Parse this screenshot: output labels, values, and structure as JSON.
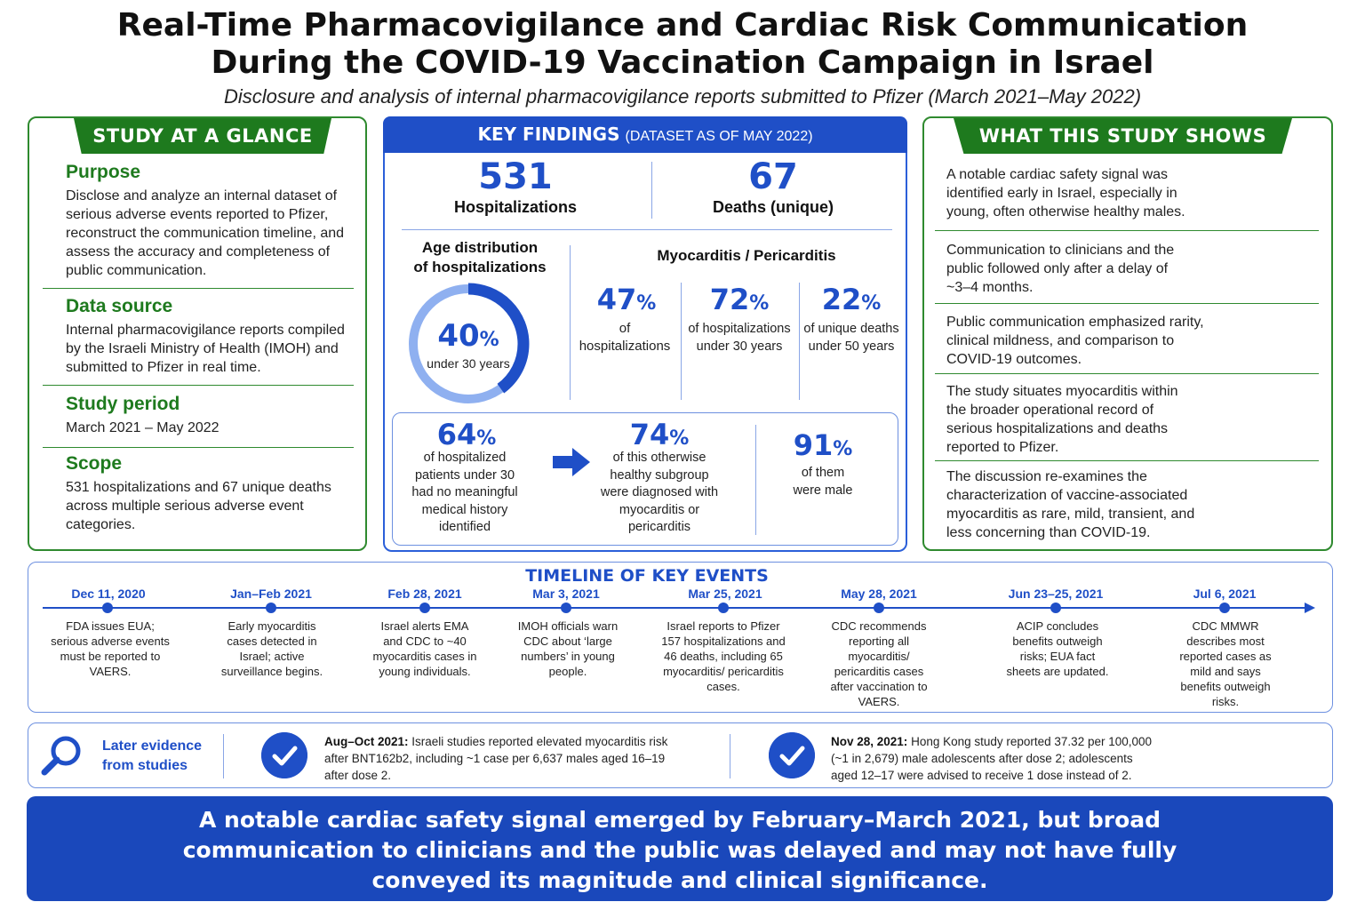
{
  "header": {
    "title_line1": "Real-Time Pharmacovigilance and Cardiac Risk Communication",
    "title_line2": "During the COVID-19 Vaccination Campaign in Israel",
    "subtitle": "Disclosure and analysis of internal pharmacovigilance reports submitted to Pfizer (March 2021–May 2022)"
  },
  "glance": {
    "tab": "STUDY AT A GLANCE",
    "sections": [
      {
        "heading": "Purpose",
        "text": "Disclose and analyze an internal dataset of serious adverse events reported to Pfizer, reconstruct the communication timeline, and assess the accuracy and completeness of public communication."
      },
      {
        "heading": "Data source",
        "text": "Internal pharmacovigilance reports compiled by the Israeli Ministry of Health (IMOH) and submitted to Pfizer in real time."
      },
      {
        "heading": "Study period",
        "text": "March 2021 – May 2022"
      },
      {
        "heading": "Scope",
        "text": "531 hospitalizations and 67 unique deaths across multiple serious adverse event categories."
      }
    ]
  },
  "findings": {
    "head_big": "KEY FINDINGS",
    "head_small": "(DATASET AS OF MAY 2022)",
    "hosp_value": "531",
    "hosp_label": "Hospitalizations",
    "deaths_value": "67",
    "deaths_label": "Deaths (unique)",
    "age_title_1": "Age distribution",
    "age_title_2": "of hospitalizations",
    "age_pct_num": "40",
    "age_pct_fraction": 0.4,
    "age_pct_label": "under 30 years",
    "myo_title": "Myocarditis / Pericarditis",
    "myo_stats": [
      {
        "num": "47",
        "label1": "of",
        "label2": "hospitalizations"
      },
      {
        "num": "72",
        "label1": "of hospitalizations",
        "label2": "under 30 years"
      },
      {
        "num": "22",
        "label1": "of unique deaths",
        "label2": "under 50 years"
      }
    ],
    "sub_stats": [
      {
        "num": "64",
        "lines": [
          "of hospitalized",
          "patients under 30",
          "had no meaningful",
          "medical history",
          "identified"
        ]
      },
      {
        "num": "74",
        "lines": [
          "of this otherwise",
          "healthy subgroup",
          "were diagnosed with",
          "myocarditis or",
          "pericarditis"
        ]
      },
      {
        "num": "91",
        "lines": [
          "of them",
          "were male"
        ]
      }
    ],
    "pct_sign": "%"
  },
  "shows": {
    "tab": "WHAT THIS STUDY SHOWS",
    "items": [
      "A notable cardiac safety signal was identified early in Israel, especially in young, often otherwise healthy males.",
      "Communication to clinicians and the public followed only after a delay of ~3–4 months.",
      "Public communication emphasized rarity, clinical mildness, and comparison to COVID-19 outcomes.",
      "The study situates myocarditis within the broader operational record of serious hospitalizations and deaths reported to Pfizer.",
      "The discussion re-examines the characterization of vaccine-associated myocarditis as rare, mild, transient, and less concerning than COVID-19."
    ]
  },
  "timeline": {
    "title": "TIMELINE OF KEY EVENTS",
    "events": [
      {
        "date": "Dec 11, 2020",
        "text": "FDA issues EUA; serious adverse events must be reported to VAERS."
      },
      {
        "date": "Jan–Feb 2021",
        "text": "Early myocarditis cases detected in Israel; active surveillance begins."
      },
      {
        "date": "Feb 28, 2021",
        "text": "Israel alerts EMA and CDC to ~40 myocarditis cases in young individuals."
      },
      {
        "date": "Mar 3, 2021",
        "text": "IMOH officials warn CDC about ‘large numbers’ in young people."
      },
      {
        "date": "Mar 25, 2021",
        "text": "Israel reports to Pfizer 157 hospitalizations and 46 deaths, including 65 myocarditis/ pericarditis cases."
      },
      {
        "date": "May 28, 2021",
        "text": "CDC recommends reporting all myocarditis/ pericarditis cases after vaccination to VAERS."
      },
      {
        "date": "Jun 23–25, 2021",
        "text": "ACIP concludes benefits outweigh risks; EUA fact sheets are updated."
      },
      {
        "date": "Jul 6, 2021",
        "text": "CDC MMWR describes most reported cases as mild and says benefits outweigh risks."
      }
    ]
  },
  "later": {
    "label_1": "Later evidence",
    "label_2": "from studies",
    "items": [
      {
        "bold": "Aug–Oct 2021:",
        "text": " Israeli studies reported elevated myocarditis risk after BNT162b2, including ~1 case per 6,637 males aged 16–19 after dose 2."
      },
      {
        "bold": "Nov 28, 2021:",
        "text": " Hong Kong study reported 37.32 per 100,000 (~1 in 2,679) male adolescents after dose 2; adolescents aged 12–17 were advised to receive 1 dose instead of 2."
      }
    ]
  },
  "banner": {
    "text": "A notable cardiac safety signal emerged by February–March 2021, but broad communication to clinicians and the public was delayed and may not have fully conveyed its magnitude and clinical significance."
  },
  "colors": {
    "green": "#1e7a1e",
    "blue": "#1f4fc7",
    "ring_light": "#8fb0f0"
  },
  "icons": [
    "magnifier-icon",
    "check-circle-icon",
    "arrow-right-icon"
  ]
}
